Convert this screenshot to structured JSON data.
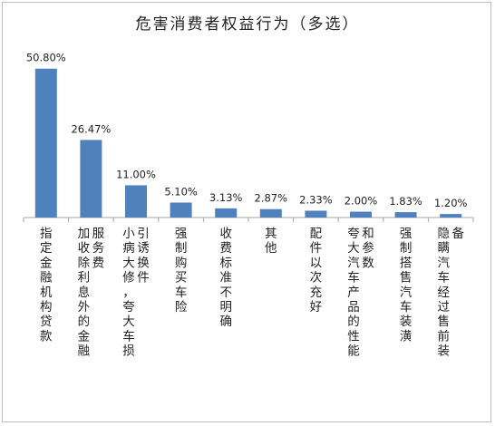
{
  "chart_data": {
    "type": "bar",
    "title": "危害消费者权益行为（多选）",
    "categories": [
      "指定金融机构贷款",
      "加收除利息外的金融服务费",
      "小病大修，夸大车损引诱换件",
      "强制购买车险",
      "收费标准不明确",
      "其他",
      "配件以次充好",
      "夸大汽车产品的性能和参数",
      "强制搭售汽车装潢",
      "隐瞒汽车经过售前装备"
    ],
    "values": [
      50.8,
      26.47,
      11.0,
      5.1,
      3.13,
      2.87,
      2.33,
      2.0,
      1.83,
      1.2
    ],
    "value_labels": [
      "50.80%",
      "26.47%",
      "11.00%",
      "5.10%",
      "3.13%",
      "2.87%",
      "2.33%",
      "2.00%",
      "1.83%",
      "1.20%"
    ],
    "ylim": [
      0,
      60
    ],
    "unit": "%",
    "grid": false,
    "legend": "none",
    "bar_color": "#4f81bd",
    "axis_color": "#a6a6a6"
  }
}
